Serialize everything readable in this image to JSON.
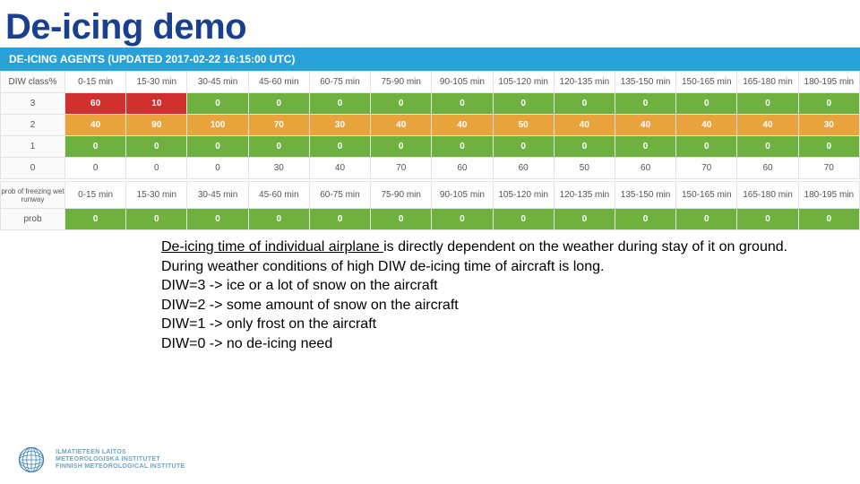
{
  "title": {
    "text": "De-icing demo",
    "color": "#1b3f8f"
  },
  "banner": {
    "text": "DE-ICING AGENTS (UPDATED 2017-02-22 16:15:00 UTC)",
    "bg": "#2aa0d8",
    "fg": "#ffffff"
  },
  "colors": {
    "green": "#6fb13f",
    "orange": "#e8a33d",
    "red": "#d1302f",
    "grid": "#e3e3e3",
    "header_fg": "#555555"
  },
  "time_bins": [
    "0-15 min",
    "15-30 min",
    "30-45 min",
    "45-60 min",
    "60-75 min",
    "75-90 min",
    "90-105 min",
    "105-120 min",
    "120-135 min",
    "135-150 min",
    "150-165 min",
    "165-180 min",
    "180-195 min"
  ],
  "diw_header": "DIW class%",
  "diw_rows": [
    {
      "label": "3",
      "values": [
        60,
        10,
        0,
        0,
        0,
        0,
        0,
        0,
        0,
        0,
        0,
        0,
        0
      ]
    },
    {
      "label": "2",
      "values": [
        40,
        90,
        100,
        70,
        30,
        40,
        40,
        50,
        40,
        40,
        40,
        40,
        30
      ]
    },
    {
      "label": "1",
      "values": [
        0,
        0,
        0,
        0,
        0,
        0,
        0,
        0,
        0,
        0,
        0,
        0,
        0
      ]
    },
    {
      "label": "0",
      "values": [
        0,
        0,
        0,
        30,
        40,
        70,
        60,
        60,
        50,
        60,
        70,
        60,
        70
      ]
    }
  ],
  "diw_color_rule": {
    "per_row": [
      "red_if_gt0_else_green",
      "orange_if_gt0_else_green",
      "green",
      "plain"
    ]
  },
  "freeze_header": "prob of freezing wet runway",
  "prob_row": {
    "label": "prob",
    "values": [
      0,
      0,
      0,
      0,
      0,
      0,
      0,
      0,
      0,
      0,
      0,
      0,
      0
    ],
    "bg": "green"
  },
  "description": {
    "lead_underlined": "De-icing time of individual airplane ",
    "lead_rest": "is directly dependent on the weather during stay of it on ground.",
    "lines": [
      "During weather conditions of high DIW de-icing time of aircraft is long.",
      "DIW=3 -> ice or a lot of snow on the aircraft",
      "DIW=2 -> some amount of snow on the aircraft",
      "DIW=1 -> only frost on the aircraft",
      "DIW=0 -> no de-icing need"
    ]
  },
  "footer": {
    "globe_color": "#3a7fb0",
    "lines": [
      "ILMATIETEEN LAITOS",
      "METEOROLOGISKA INSTITUTET",
      "FINNISH METEOROLOGICAL INSTITUTE"
    ]
  }
}
